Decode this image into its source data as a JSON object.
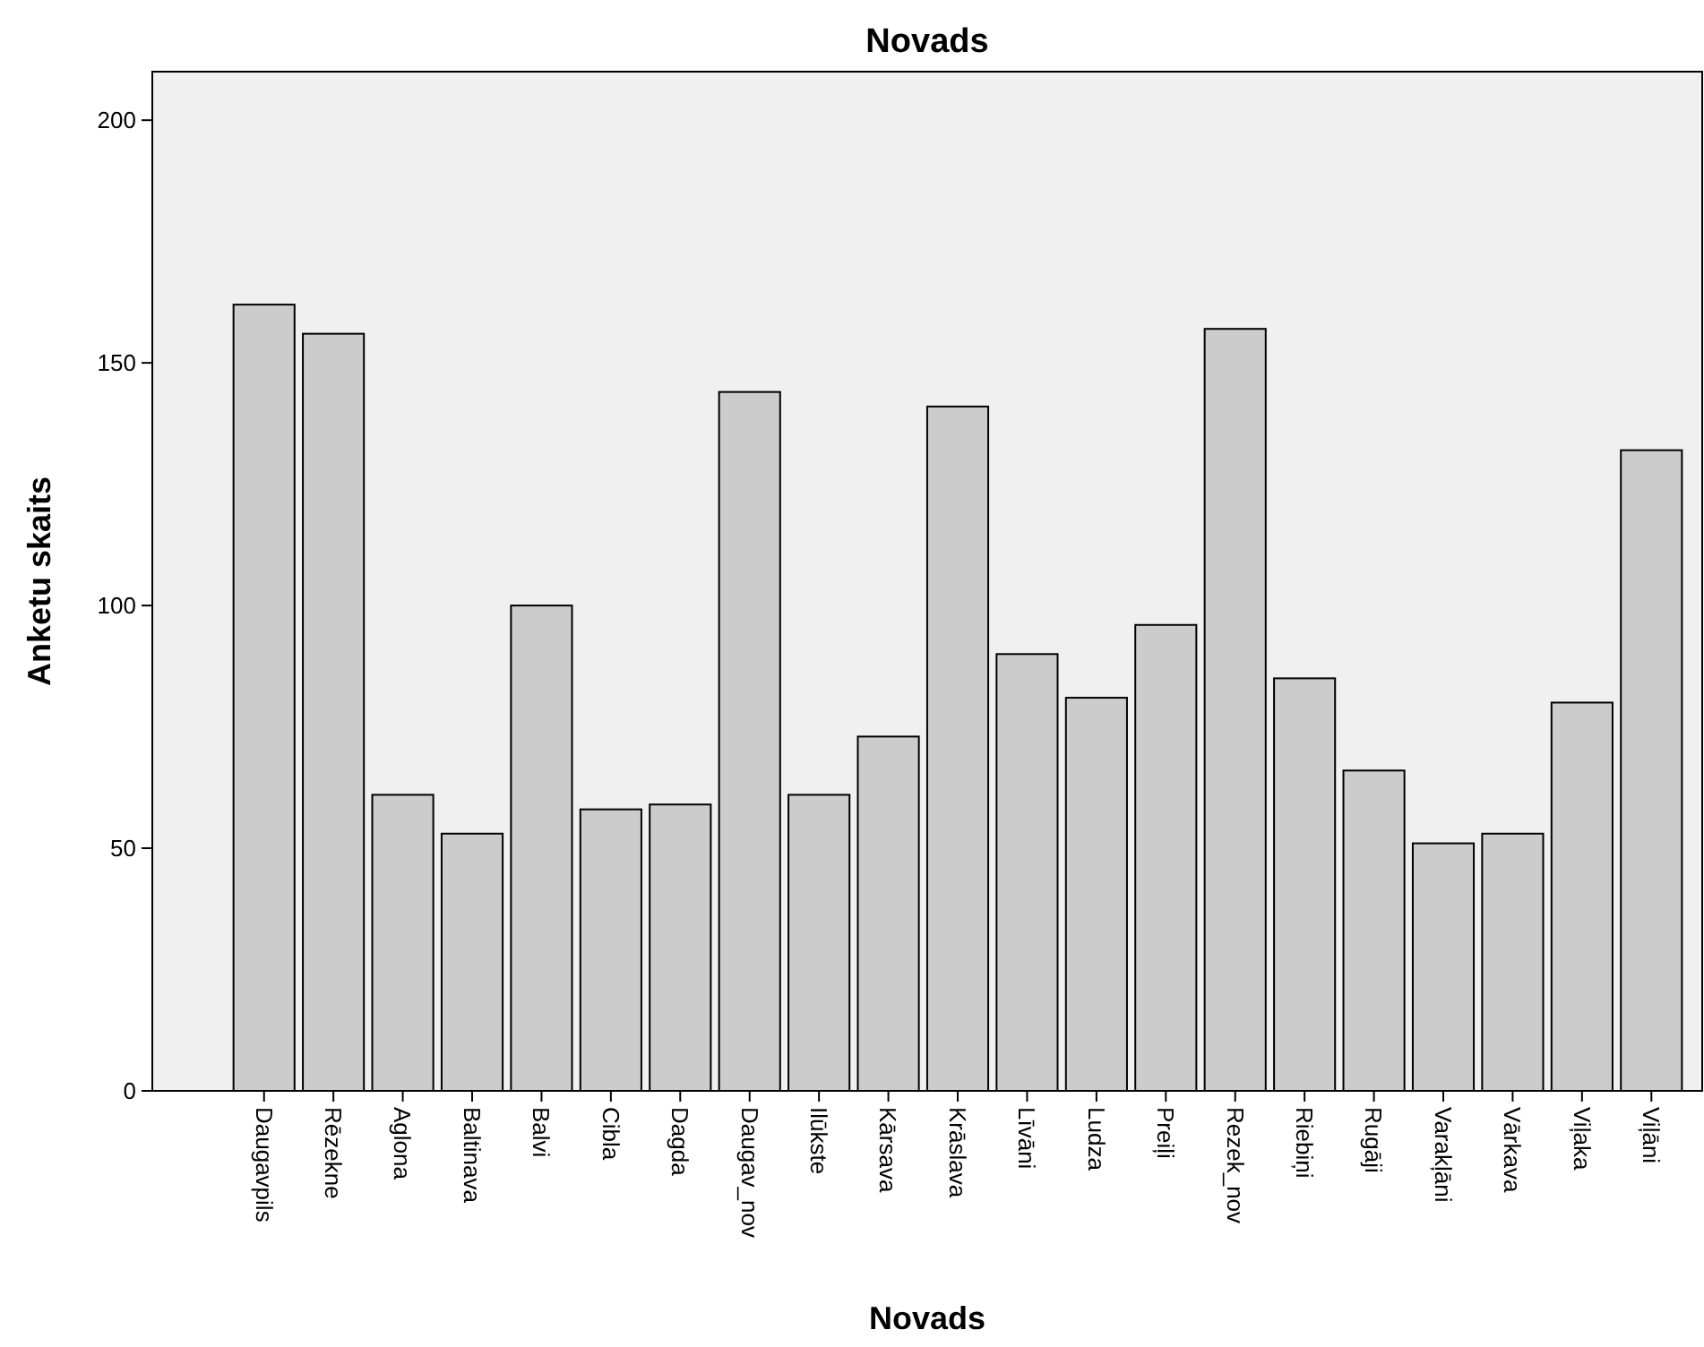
{
  "chart_data": {
    "type": "bar",
    "title": "Novads",
    "xlabel": "Novads",
    "ylabel": "Anketu skaits",
    "categories": [
      "Daugavpils",
      "Rēzekne",
      "Aglona",
      "Baltinava",
      "Balvi",
      "Cibla",
      "Dagda",
      "Daugav_nov",
      "Ilūkste",
      "Kārsava",
      "Krāslava",
      "Līvāni",
      "Ludza",
      "Preiļi",
      "Rezek_nov",
      "Riebiņi",
      "Rugāji",
      "Varakļāni",
      "Vārkava",
      "Viļaka",
      "Viļāni"
    ],
    "values": [
      162,
      156,
      61,
      53,
      100,
      58,
      59,
      144,
      61,
      73,
      141,
      90,
      81,
      96,
      157,
      85,
      66,
      51,
      53,
      80,
      132
    ],
    "color": "#cccccc",
    "ylim": [
      0,
      210
    ],
    "yticks": [
      0,
      50,
      100,
      150,
      200
    ],
    "grid": false
  }
}
